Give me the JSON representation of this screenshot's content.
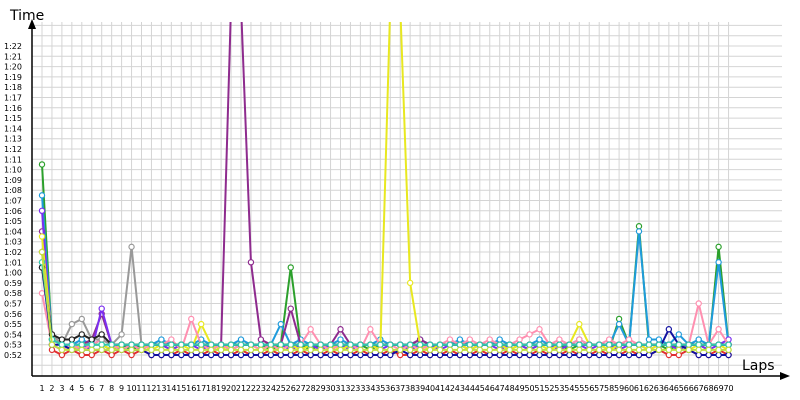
{
  "chart_data": {
    "type": "line",
    "title": "",
    "xlabel": "Laps",
    "ylabel": "Time",
    "grid": true,
    "legend": "none",
    "x": [
      1,
      2,
      3,
      4,
      5,
      6,
      7,
      8,
      9,
      10,
      11,
      12,
      13,
      14,
      15,
      16,
      17,
      18,
      19,
      20,
      21,
      22,
      23,
      24,
      25,
      26,
      27,
      28,
      29,
      30,
      31,
      32,
      33,
      34,
      35,
      36,
      37,
      38,
      39,
      40,
      41,
      42,
      43,
      44,
      45,
      46,
      47,
      48,
      49,
      50,
      51,
      52,
      53,
      54,
      55,
      56,
      57,
      58,
      59,
      60,
      61,
      62,
      63,
      64,
      65,
      66,
      67,
      68,
      69,
      70
    ],
    "y_tick_labels": [
      "0:52",
      "0:53",
      "0:54",
      "0:55",
      "0:56",
      "0:57",
      "0:58",
      "0:59",
      "1:00",
      "1:01",
      "1:02",
      "1:03",
      "1:04",
      "1:05",
      "1:06",
      "1:07",
      "1:08",
      "1:09",
      "1:10",
      "1:11",
      "1:12",
      "1:13",
      "1:14",
      "1:15",
      "1:16",
      "1:17",
      "1:18",
      "1:19",
      "1:20",
      "1:21",
      "1:22"
    ],
    "ylim": [
      51,
      86
    ],
    "y_unit": "seconds",
    "series": [
      {
        "color": "#2ca02c",
        "values": [
          70.5,
          53.5,
          53,
          52.5,
          53,
          53,
          53,
          52.5,
          53,
          52.5,
          53,
          53,
          53,
          52.5,
          53,
          53,
          53,
          52.5,
          53,
          52.5,
          53,
          53,
          53,
          52.5,
          53,
          60.5,
          53,
          52.5,
          53,
          52.5,
          53,
          53,
          53,
          52.5,
          53,
          53,
          53,
          52.5,
          53,
          52.5,
          53,
          53,
          53,
          52.5,
          53,
          53,
          53,
          52.5,
          53,
          52.5,
          53,
          53,
          53,
          52.5,
          53,
          53,
          53,
          52.5,
          55.5,
          53,
          64.5,
          53,
          53,
          52.5,
          53,
          53,
          53,
          52.5,
          62.5,
          53
        ]
      },
      {
        "color": "#1f9bdc",
        "values": [
          67.5,
          53.5,
          53,
          53,
          53.5,
          53,
          53.5,
          53,
          53,
          53,
          53,
          53,
          53.5,
          53,
          53,
          53,
          53.5,
          53,
          53,
          53,
          53.5,
          53,
          53,
          53,
          55,
          53,
          53.5,
          53,
          53,
          53,
          53.5,
          53,
          53,
          53,
          53.5,
          53,
          53,
          53,
          53.5,
          53,
          53,
          53,
          53.5,
          53,
          53,
          53,
          53.5,
          53,
          53,
          53,
          53.5,
          53,
          53,
          53,
          53.5,
          53,
          53,
          53,
          55,
          53,
          64,
          53.5,
          53.5,
          53,
          54,
          53,
          53.5,
          53,
          61,
          53
        ]
      },
      {
        "color": "#8e2b8e",
        "values": [
          64,
          53.5,
          53,
          53,
          53,
          53.5,
          56,
          53,
          53,
          53,
          53,
          53,
          53,
          53,
          53,
          53,
          53,
          53,
          53,
          86,
          86,
          61,
          53.5,
          53,
          53,
          56.5,
          53,
          53,
          53,
          53,
          54.5,
          53,
          53,
          53,
          53,
          53,
          53,
          53,
          53.5,
          53,
          53,
          53,
          53,
          53,
          53,
          53,
          53,
          53,
          53,
          53,
          53,
          53,
          53,
          53,
          53,
          53,
          53,
          53,
          53,
          53,
          53,
          53,
          53,
          53,
          53,
          53,
          53,
          53,
          53,
          53
        ]
      },
      {
        "color": "#7b2ff0",
        "values": [
          66,
          53,
          52.5,
          53,
          53,
          52.5,
          56.5,
          53,
          53,
          53,
          52.5,
          53,
          53,
          52.5,
          53,
          53,
          52.5,
          53,
          53,
          52.5,
          53,
          53,
          52.5,
          53,
          53,
          52.5,
          53,
          53,
          52.5,
          53,
          53,
          52.5,
          53,
          53,
          52.5,
          53,
          53,
          52.5,
          53,
          53,
          52.5,
          53,
          53,
          52.5,
          53,
          53,
          52.5,
          53,
          53,
          52.5,
          53,
          53,
          52.5,
          53,
          53,
          52.5,
          53,
          53,
          52.5,
          53,
          53,
          52.5,
          53,
          53,
          52.5,
          53,
          53,
          52.5,
          53,
          53.5
        ]
      },
      {
        "color": "#e8e820",
        "values": [
          63.5,
          53.5,
          53,
          52.5,
          53,
          53,
          53,
          52.5,
          53,
          53,
          53,
          52.5,
          53,
          53,
          53,
          52.5,
          55,
          53,
          52.5,
          53,
          53,
          53,
          52.5,
          53,
          53,
          53,
          52.5,
          53,
          53,
          53,
          52.5,
          53,
          53,
          53,
          52.5,
          86,
          86,
          59,
          53,
          52.5,
          53,
          53,
          53,
          52.5,
          53,
          53,
          53,
          52.5,
          53,
          53,
          53,
          52.5,
          53,
          53,
          55,
          53,
          53,
          52.5,
          53,
          53,
          53,
          52.5,
          53,
          53,
          53,
          52.5,
          53,
          53,
          53,
          52.5
        ]
      },
      {
        "color": "#ff8fb0",
        "values": [
          58,
          53,
          52.5,
          53,
          52.5,
          53,
          53.5,
          53,
          52.5,
          53,
          52.5,
          53,
          53,
          53.5,
          52.5,
          55.5,
          53,
          52.5,
          53,
          52.5,
          53,
          53,
          52.5,
          53,
          52.5,
          53,
          53,
          54.5,
          53,
          52.5,
          53,
          53,
          52.5,
          54.5,
          53,
          53,
          52.5,
          53,
          52.5,
          53,
          53,
          53.5,
          53,
          53.5,
          53,
          53.5,
          53,
          53,
          53.5,
          54,
          54.5,
          53,
          53.5,
          53,
          53.5,
          53,
          53,
          53.5,
          53,
          53.5,
          53,
          53,
          53,
          53,
          53,
          53,
          57,
          53,
          54.5,
          53
        ]
      },
      {
        "color": "#e03030",
        "values": [
          62,
          52.5,
          52,
          52.5,
          52,
          52,
          52.5,
          52,
          52.5,
          52,
          52.5,
          52,
          52,
          52,
          52.5,
          52,
          52,
          52.5,
          52,
          52,
          52.5,
          52,
          52,
          52.5,
          52,
          52,
          52.5,
          52,
          52,
          52.5,
          52,
          52,
          52.5,
          52,
          52,
          52.5,
          52,
          52,
          52.5,
          52,
          52,
          52.5,
          52,
          52,
          52.5,
          52,
          52,
          52.5,
          52,
          52,
          52.5,
          52,
          52,
          52.5,
          52,
          52,
          52.5,
          52,
          52,
          52.5,
          52,
          52,
          52.5,
          52,
          52,
          52.5,
          52,
          52,
          52.5,
          52
        ]
      },
      {
        "color": "#1010a0",
        "values": [
          60.5,
          53,
          53,
          52.5,
          52.5,
          52.5,
          52.5,
          52.5,
          52.5,
          52.5,
          52.5,
          52,
          52,
          52,
          52,
          52,
          52,
          52,
          52,
          52,
          52,
          52,
          52,
          52,
          52,
          52,
          52,
          52,
          52,
          52,
          52,
          52,
          52,
          52,
          52,
          52,
          52.5,
          52,
          52,
          52,
          52,
          52,
          52,
          52,
          52,
          52,
          52,
          52,
          52,
          52,
          52,
          52,
          52,
          52,
          52,
          52,
          52,
          52,
          52,
          52,
          52,
          52,
          52.5,
          54.5,
          53,
          52.5,
          52,
          52,
          52,
          52
        ]
      },
      {
        "color": "#999999",
        "values": [
          61,
          54,
          53,
          55,
          55.5,
          53.5,
          53.5,
          53,
          54,
          62.5,
          53,
          53,
          53,
          53,
          53,
          53,
          53,
          53,
          53,
          53,
          53,
          53,
          53,
          53,
          53,
          53,
          53,
          53,
          53,
          53,
          53,
          53,
          53,
          53,
          53,
          53,
          53,
          53,
          53,
          53,
          53,
          53,
          53,
          53,
          53,
          53,
          53,
          53,
          53,
          53,
          53,
          53,
          53,
          53,
          53,
          53,
          53,
          53,
          53,
          53,
          53,
          53,
          53,
          53,
          53,
          53,
          53,
          53,
          53,
          53
        ]
      },
      {
        "color": "#222222",
        "values": [
          60.5,
          54,
          53.5,
          53.5,
          54,
          53.5,
          54,
          53,
          53,
          53,
          53,
          53,
          53,
          53,
          53,
          53,
          53,
          53,
          53,
          53,
          53,
          53,
          53,
          53,
          53,
          53,
          53,
          53,
          53,
          53,
          53,
          53,
          53,
          53,
          53,
          53,
          53,
          53,
          53,
          53,
          53,
          53,
          53,
          53,
          53,
          53,
          53,
          53,
          53,
          53,
          53,
          53,
          53,
          53,
          53,
          53,
          53,
          53,
          53,
          53,
          53,
          53,
          53,
          53,
          53,
          53,
          53,
          53,
          53,
          53
        ]
      },
      {
        "color": "#30c8b0",
        "values": [
          61,
          53.5,
          53,
          53,
          53,
          53,
          53,
          53,
          53,
          53,
          53,
          53,
          53,
          53,
          53,
          53,
          53,
          53,
          53,
          53,
          53,
          53,
          53,
          53,
          53,
          53,
          53,
          53,
          53,
          53,
          53,
          53,
          53,
          53,
          53,
          53,
          53,
          53,
          53,
          53,
          53,
          53,
          53,
          53,
          53,
          53,
          53,
          53,
          53,
          53,
          53,
          53,
          53,
          53,
          53,
          53,
          53,
          53,
          53,
          53,
          53,
          53,
          53,
          53,
          53,
          53,
          53,
          53,
          53,
          53
        ]
      },
      {
        "color": "#c0e040",
        "values": [
          62,
          53,
          52.5,
          52.5,
          52.5,
          52.5,
          52.5,
          52.5,
          52.5,
          52.5,
          52.5,
          52.5,
          52.5,
          52.5,
          52.5,
          52.5,
          52.5,
          52.5,
          52.5,
          52.5,
          52.5,
          52.5,
          52.5,
          52.5,
          52.5,
          52.5,
          52.5,
          52.5,
          52.5,
          52.5,
          52.5,
          52.5,
          52.5,
          52.5,
          52.5,
          52.5,
          52.5,
          52.5,
          52.5,
          52.5,
          52.5,
          52.5,
          52.5,
          52.5,
          52.5,
          52.5,
          52.5,
          52.5,
          52.5,
          52.5,
          52.5,
          52.5,
          52.5,
          52.5,
          52.5,
          52.5,
          52.5,
          52.5,
          52.5,
          52.5,
          52.5,
          52.5,
          52.5,
          52.5,
          52.5,
          52.5,
          52.5,
          52.5,
          52.5,
          52.5
        ]
      }
    ]
  }
}
